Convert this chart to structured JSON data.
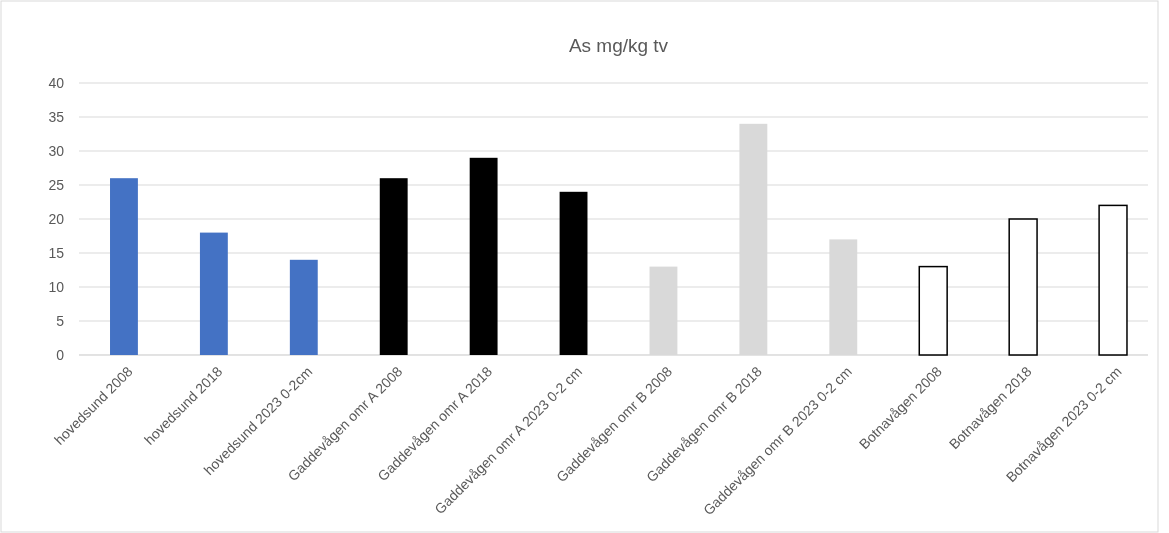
{
  "chart_data": {
    "type": "bar",
    "title": "As mg/kg tv",
    "categories": [
      "hovedsund 2008",
      "hovedsund 2018",
      "hovedsund 2023 0-2cm",
      "Gaddevågen omr A 2008",
      "Gaddevågen omr A 2018",
      "Gaddevågen omr A 2023 0-2 cm",
      "Gaddevågen omr B 2008",
      "Gaddevågen omr B 2018",
      "Gaddevågen omr B 2023 0-2 cm",
      "Botnavågen 2008",
      "Botnavågen 2018",
      "Botnavågen 2023 0-2 cm"
    ],
    "values": [
      26,
      18,
      14,
      26,
      29,
      24,
      13,
      34,
      17,
      13,
      20,
      22
    ],
    "colors": [
      "#4472c4",
      "#4472c4",
      "#4472c4",
      "#000000",
      "#000000",
      "#000000",
      "#d9d9d9",
      "#d9d9d9",
      "#d9d9d9",
      "#ffffff",
      "#ffffff",
      "#ffffff"
    ],
    "ylim": [
      0,
      40
    ],
    "yticks": [
      0,
      5,
      10,
      15,
      20,
      25,
      30,
      35,
      40
    ],
    "grid": "y"
  }
}
